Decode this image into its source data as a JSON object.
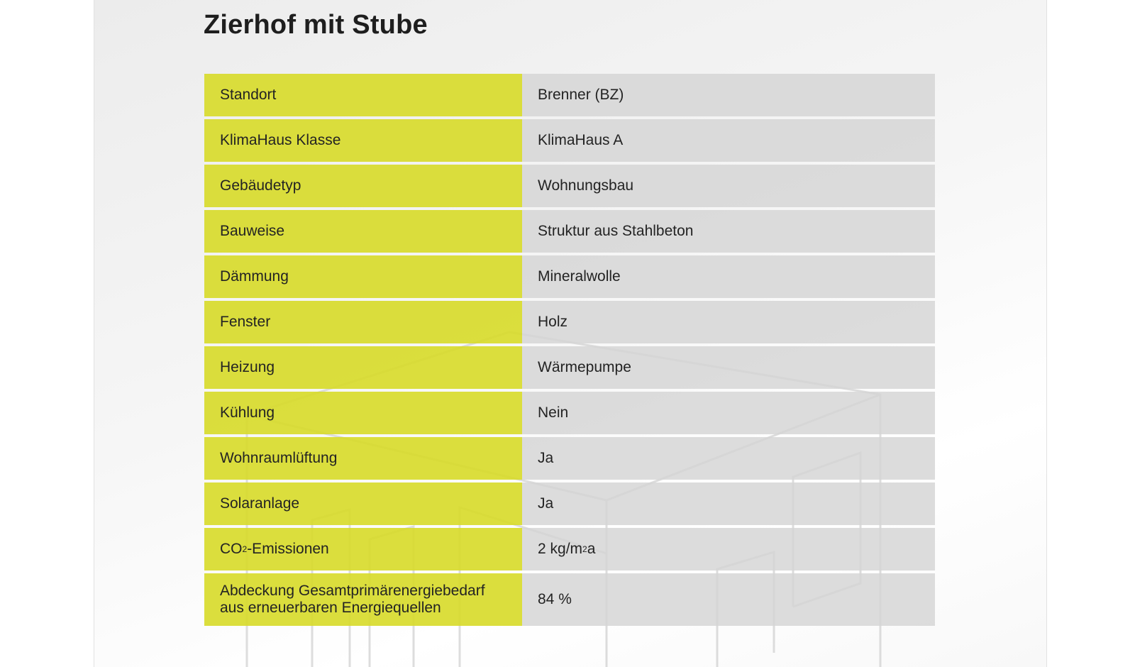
{
  "title": "Zierhof mit Stube",
  "rows": [
    {
      "label": "Standort",
      "value": "Brenner (BZ)"
    },
    {
      "label": "KlimaHaus Klasse",
      "value": "KlimaHaus A"
    },
    {
      "label": "Gebäudetyp",
      "value": "Wohnungsbau"
    },
    {
      "label": "Bauweise",
      "value": "Struktur aus Stahlbeton"
    },
    {
      "label": "Dämmung",
      "value": "Mineralwolle"
    },
    {
      "label": "Fenster",
      "value": "Holz"
    },
    {
      "label": "Heizung",
      "value": "Wärmepumpe"
    },
    {
      "label": "Kühlung",
      "value": "Nein"
    },
    {
      "label": "Wohnraumlüftung",
      "value": "Ja"
    },
    {
      "label": "Solaranlage",
      "value": "Ja"
    },
    {
      "label_prefix": "CO",
      "label_sub": "2",
      "label_suffix": "-Emissionen",
      "value_prefix": "2 kg/m",
      "value_sup": "2",
      "value_suffix": "a"
    },
    {
      "label": "Abdeckung Gesamtprimärenergiebedarf\naus erneuerbaren Energiequellen",
      "value": "84 %"
    }
  ],
  "colors": {
    "label_bg": "#d7da28",
    "value_bg": "#d4d4d4",
    "text": "#232323"
  }
}
